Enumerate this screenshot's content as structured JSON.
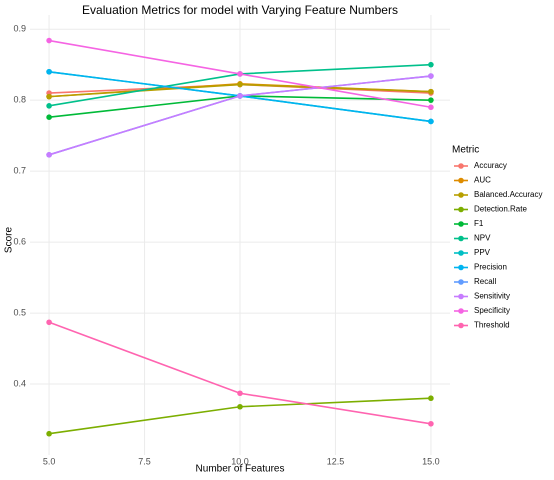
{
  "chart_data": {
    "type": "line",
    "title": "Evaluation Metrics for model with Varying Feature Numbers",
    "x_label": "Number of Features",
    "y_label": "Score",
    "legend_title": "Metric",
    "x": [
      5,
      10,
      15
    ],
    "xlim": [
      4.5,
      15.5
    ],
    "xticks": [
      {
        "value": 5,
        "label": "5.0"
      },
      7.5,
      {
        "value": 10,
        "label": "10.0"
      },
      12.5,
      {
        "value": 15,
        "label": "15.0"
      }
    ],
    "ylim": [
      0.3,
      0.92
    ],
    "yticks": [
      0.4,
      0.5,
      0.6,
      0.7,
      0.8,
      0.9
    ],
    "grid": true,
    "legend_position": "right",
    "series": [
      {
        "name": "Accuracy",
        "color": "#F8766D",
        "values": [
          0.81,
          0.822,
          0.81
        ]
      },
      {
        "name": "AUC",
        "color": "#DE8C00",
        "values": [
          0.805,
          0.823,
          0.812
        ]
      },
      {
        "name": "Balanced.Accuracy",
        "color": "#B79F00",
        "values": [
          0.805,
          0.822,
          0.812
        ]
      },
      {
        "name": "Detection.Rate",
        "color": "#7CAE00",
        "values": [
          0.33,
          0.368,
          0.38
        ]
      },
      {
        "name": "F1",
        "color": "#00BA38",
        "values": [
          0.776,
          0.806,
          0.8
        ]
      },
      {
        "name": "NPV",
        "color": "#00C08B",
        "values": [
          0.792,
          0.837,
          0.85
        ]
      },
      {
        "name": "PPV",
        "color": "#00BFC4",
        "values": [
          0.84,
          0.806,
          0.77
        ]
      },
      {
        "name": "Precision",
        "color": "#00B4F0",
        "values": [
          0.84,
          0.806,
          0.77
        ]
      },
      {
        "name": "Recall",
        "color": "#619CFF",
        "values": [
          0.723,
          0.806,
          0.834
        ]
      },
      {
        "name": "Sensitivity",
        "color": "#C77CFF",
        "values": [
          0.723,
          0.806,
          0.834
        ]
      },
      {
        "name": "Specificity",
        "color": "#F564E3",
        "values": [
          0.884,
          0.837,
          0.79
        ]
      },
      {
        "name": "Threshold",
        "color": "#FF64B0",
        "values": [
          0.487,
          0.387,
          0.344
        ]
      }
    ]
  }
}
